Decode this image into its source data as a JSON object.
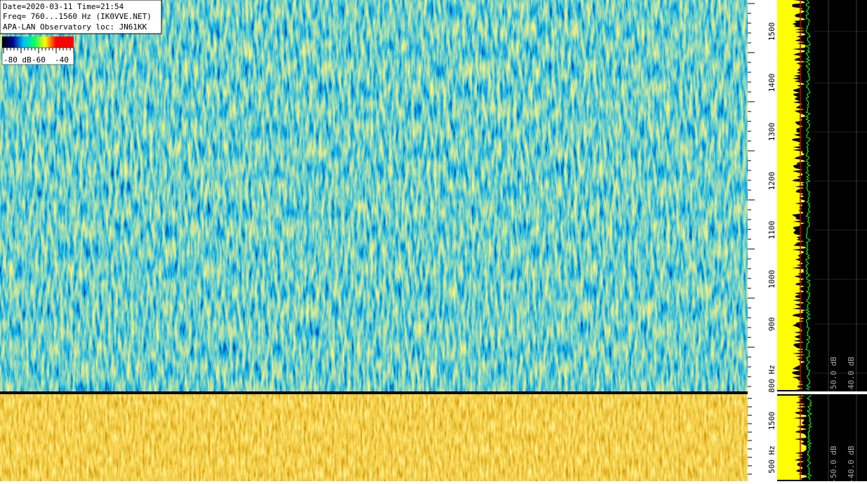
{
  "header": {
    "line1": "Date=2020-03-11 Time=21:54",
    "line2": "Freq= 760...1560 Hz (IK0VVE.NET)",
    "line3": "APA-LAN Observatory loc: JN61KK"
  },
  "colorbar": {
    "labels": [
      "-80 dB",
      "-60",
      "-40"
    ]
  },
  "freq_axis": {
    "labels": [
      "1500",
      "1400",
      "1300",
      "1200",
      "1100",
      "1000",
      "900",
      "800 Hz"
    ]
  },
  "level_axis": {
    "labels": [
      "-50.0 dB",
      "-40.0 dB"
    ]
  },
  "lower_freq_axis": {
    "labels": [
      "1500",
      "500 Hz"
    ]
  },
  "lower_level_axis": {
    "labels": [
      "-50.0 dB",
      "-40.0 dB"
    ]
  }
}
